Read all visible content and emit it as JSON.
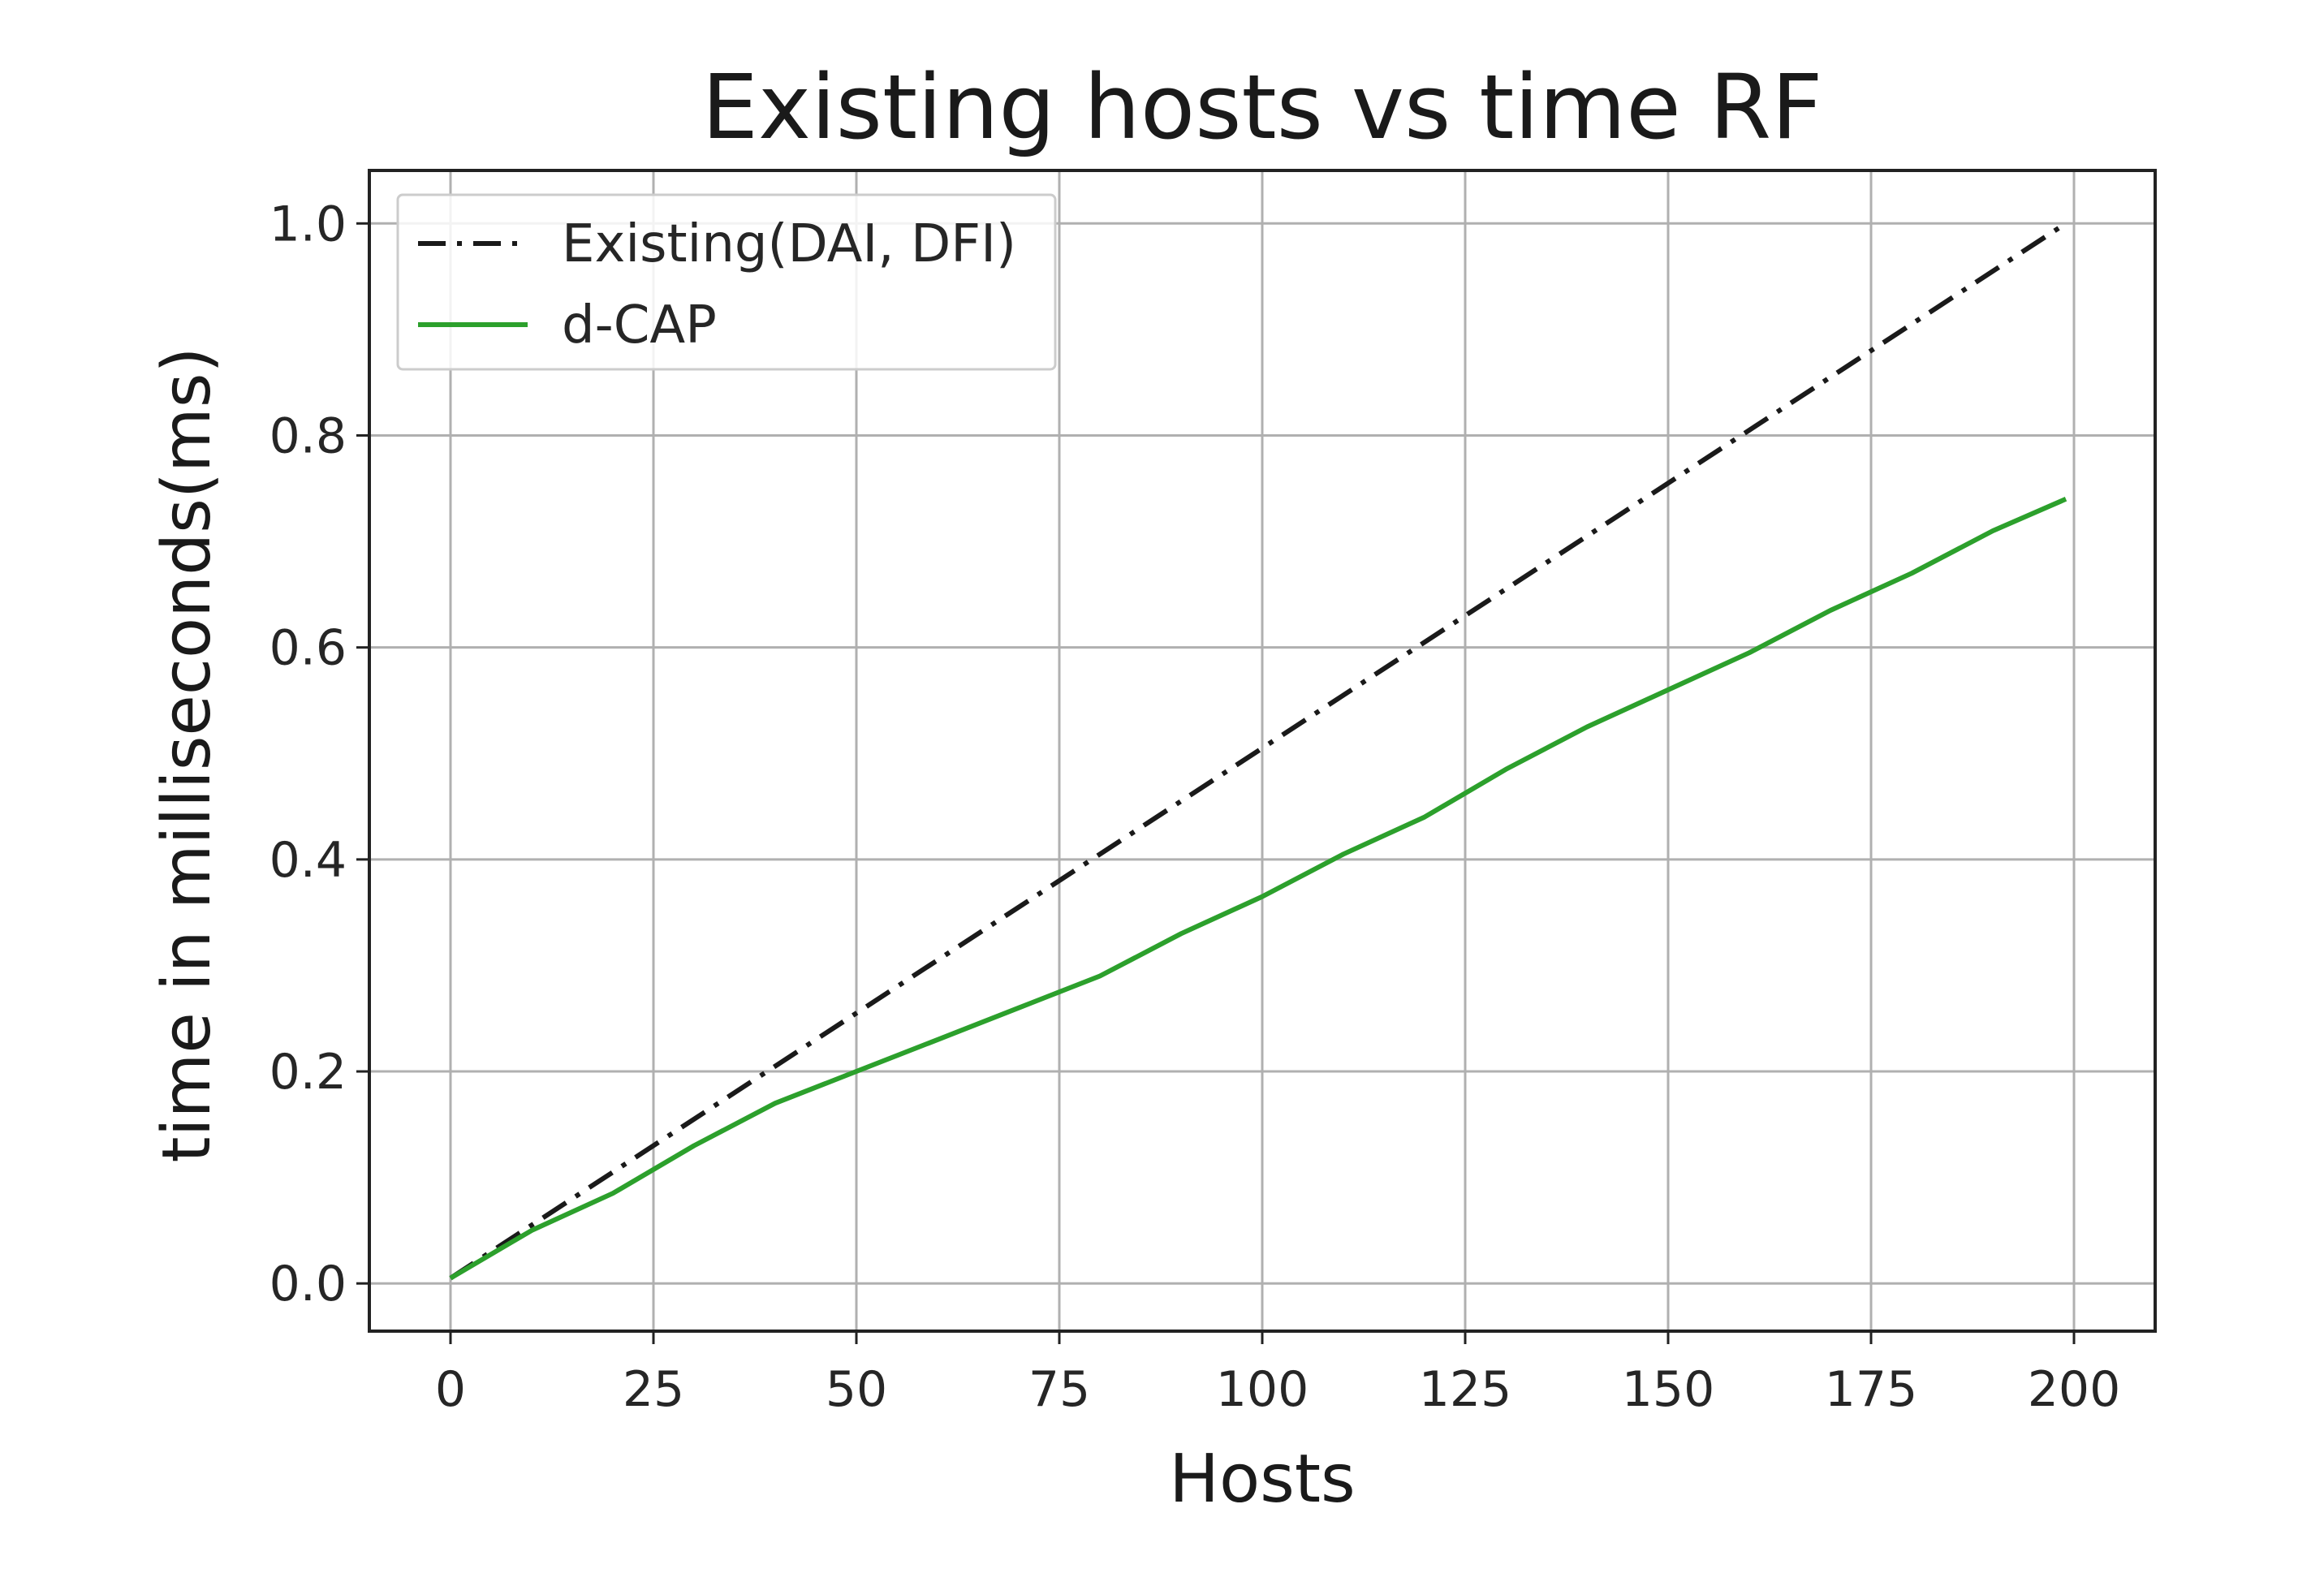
{
  "chart_data": {
    "type": "line",
    "title": "Existing hosts vs time RF",
    "xlabel": "Hosts",
    "ylabel": "time in milliseconds(ms)",
    "xlim": [
      -10,
      210
    ],
    "ylim": [
      -0.045,
      1.05
    ],
    "xticks": [
      0,
      25,
      50,
      75,
      100,
      125,
      150,
      175,
      200
    ],
    "xtick_labels": [
      "0",
      "25",
      "50",
      "75",
      "100",
      "125",
      "150",
      "175",
      "200"
    ],
    "yticks": [
      0.0,
      0.2,
      0.4,
      0.6,
      0.8,
      1.0
    ],
    "ytick_labels": [
      "0.0",
      "0.2",
      "0.4",
      "0.6",
      "0.8",
      "1.0"
    ],
    "grid": true,
    "legend_position": "top-left",
    "series": [
      {
        "name": "Existing(DAI, DFI)",
        "color": "#1a1a1a",
        "style": "dashdot",
        "x": [
          0,
          199
        ],
        "y": [
          0.005,
          1.0
        ]
      },
      {
        "name": "d-CAP",
        "color": "#2ca02c",
        "style": "solid",
        "x": [
          0,
          10,
          20,
          30,
          40,
          50,
          60,
          70,
          80,
          90,
          100,
          110,
          120,
          130,
          140,
          150,
          160,
          170,
          180,
          190,
          199
        ],
        "y": [
          0.005,
          0.05,
          0.085,
          0.13,
          0.17,
          0.2,
          0.23,
          0.26,
          0.29,
          0.33,
          0.365,
          0.405,
          0.44,
          0.485,
          0.525,
          0.56,
          0.595,
          0.635,
          0.67,
          0.71,
          0.74
        ]
      }
    ]
  }
}
